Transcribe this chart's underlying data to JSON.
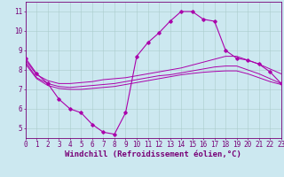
{
  "background_color": "#cce8f0",
  "grid_color": "#aacccc",
  "line_color": "#aa00aa",
  "xlabel": "Windchill (Refroidissement éolien,°C)",
  "xlim": [
    0,
    23
  ],
  "ylim": [
    4.5,
    11.5
  ],
  "yticks": [
    5,
    6,
    7,
    8,
    9,
    10,
    11
  ],
  "xticks": [
    0,
    1,
    2,
    3,
    4,
    5,
    6,
    7,
    8,
    9,
    10,
    11,
    12,
    13,
    14,
    15,
    16,
    17,
    18,
    19,
    20,
    21,
    22,
    23
  ],
  "series": {
    "main_line": {
      "x": [
        0,
        1,
        2,
        3,
        4,
        5,
        6,
        7,
        8,
        9,
        10,
        11,
        12,
        13,
        14,
        15,
        16,
        17,
        18,
        19,
        20,
        21,
        22,
        23
      ],
      "y": [
        8.6,
        7.8,
        7.3,
        6.5,
        6.0,
        5.8,
        5.2,
        4.8,
        4.7,
        5.8,
        8.7,
        9.4,
        9.9,
        10.5,
        11.0,
        11.0,
        10.6,
        10.5,
        9.0,
        8.6,
        8.5,
        8.3,
        7.9,
        7.3
      ]
    },
    "upper_smooth": {
      "x": [
        0,
        1,
        2,
        3,
        4,
        5,
        6,
        7,
        8,
        9,
        10,
        11,
        12,
        13,
        14,
        15,
        16,
        17,
        18,
        19,
        20,
        21,
        22,
        23
      ],
      "y": [
        8.5,
        7.75,
        7.45,
        7.3,
        7.3,
        7.35,
        7.4,
        7.5,
        7.55,
        7.6,
        7.7,
        7.8,
        7.9,
        8.0,
        8.1,
        8.25,
        8.4,
        8.55,
        8.7,
        8.7,
        8.5,
        8.3,
        8.05,
        7.8
      ]
    },
    "lower_smooth": {
      "x": [
        0,
        1,
        2,
        3,
        4,
        5,
        6,
        7,
        8,
        9,
        10,
        11,
        12,
        13,
        14,
        15,
        16,
        17,
        18,
        19,
        20,
        21,
        22,
        23
      ],
      "y": [
        8.4,
        7.6,
        7.3,
        7.15,
        7.1,
        7.15,
        7.2,
        7.25,
        7.3,
        7.4,
        7.5,
        7.6,
        7.7,
        7.75,
        7.85,
        7.95,
        8.05,
        8.15,
        8.2,
        8.2,
        8.0,
        7.8,
        7.55,
        7.3
      ]
    },
    "flat_line": {
      "x": [
        0,
        1,
        2,
        3,
        4,
        5,
        6,
        7,
        8,
        9,
        10,
        11,
        12,
        13,
        14,
        15,
        16,
        17,
        18,
        19,
        20,
        21,
        22,
        23
      ],
      "y": [
        8.3,
        7.55,
        7.2,
        7.05,
        7.0,
        7.0,
        7.05,
        7.1,
        7.15,
        7.25,
        7.35,
        7.45,
        7.55,
        7.65,
        7.75,
        7.82,
        7.88,
        7.92,
        7.95,
        7.95,
        7.8,
        7.6,
        7.4,
        7.25
      ]
    }
  },
  "font_color": "#770077",
  "tick_fontsize": 5.5,
  "xlabel_fontsize": 6.5
}
